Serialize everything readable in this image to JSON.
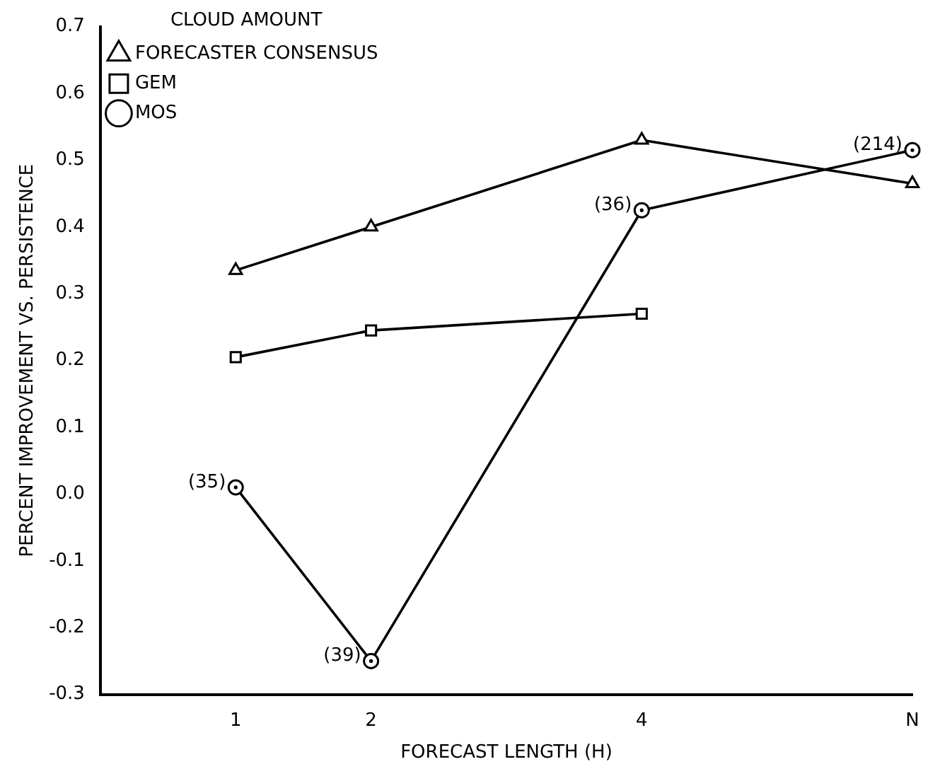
{
  "chart_data": {
    "type": "line",
    "xlabel": "FORECAST LENGTH (H)",
    "ylabel": "PERCENT IMPROVEMENT VS. PERSISTENCE",
    "legend_title": "CLOUD AMOUNT",
    "legend": "top left",
    "grid": false,
    "xlim": [
      0,
      6
    ],
    "xticks": [
      1,
      2,
      4,
      {
        "value": 6,
        "label": "N"
      }
    ],
    "ylim": [
      -0.3,
      0.7
    ],
    "yticks": [
      {
        "value": -0.3,
        "label": "-0.3"
      },
      {
        "value": -0.2,
        "label": "-0.2"
      },
      {
        "value": -0.1,
        "label": "-0.1"
      },
      {
        "value": 0,
        "label": "0.0"
      },
      {
        "value": 0.1,
        "label": "0.1"
      },
      {
        "value": 0.2,
        "label": "0.2"
      },
      {
        "value": 0.3,
        "label": "0.3"
      },
      {
        "value": 0.4,
        "label": "0.4"
      },
      {
        "value": 0.5,
        "label": "0.5"
      },
      {
        "value": 0.6,
        "label": "0.6"
      },
      {
        "value": 0.7,
        "label": "0.7"
      }
    ],
    "series": [
      {
        "name": "FORECASTER CONSENSUS",
        "color": "#000000",
        "marker": "triangle",
        "x": [
          1,
          2,
          4,
          6
        ],
        "values": [
          0.335,
          0.4,
          0.53,
          0.465
        ]
      },
      {
        "name": "GEM",
        "color": "#000000",
        "marker": "square",
        "x": [
          1,
          2,
          4
        ],
        "values": [
          0.205,
          0.245,
          0.27
        ]
      },
      {
        "name": "MOS",
        "color": "#000000",
        "marker": "circle",
        "x": [
          1,
          2,
          4,
          6
        ],
        "values": [
          0.01,
          -0.25,
          0.425,
          0.515
        ]
      }
    ],
    "annotations": [
      {
        "text": "(35)",
        "x": 1,
        "y": 0.01
      },
      {
        "text": "(39)",
        "x": 2,
        "y": -0.25
      },
      {
        "text": "(36)",
        "x": 4,
        "y": 0.425
      },
      {
        "text": "(214)",
        "x": 6,
        "y": 0.515
      }
    ]
  }
}
